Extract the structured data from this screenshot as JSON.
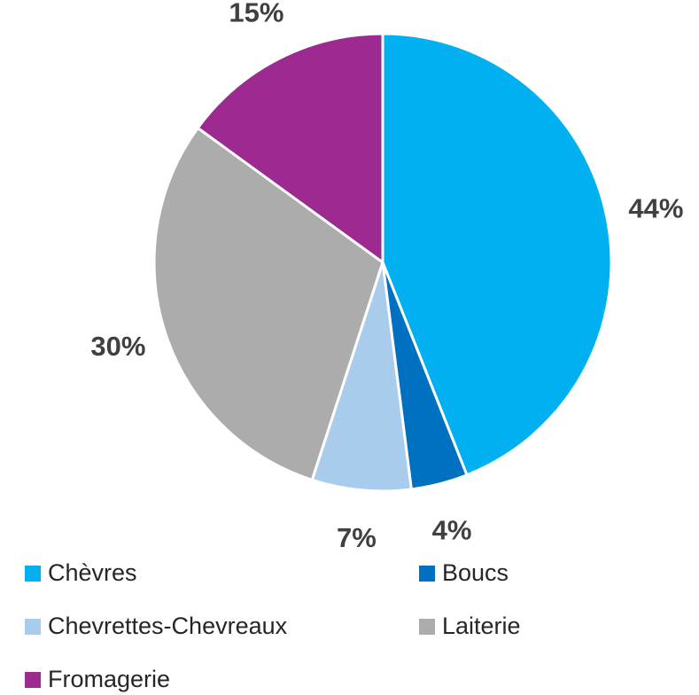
{
  "chart_data": {
    "type": "pie",
    "categories": [
      "Chèvres",
      "Boucs",
      "Chevrettes-Chevreaux",
      "Laiterie",
      "Fromagerie"
    ],
    "values": [
      44,
      4,
      7,
      30,
      15
    ],
    "value_labels": [
      "44%",
      "4%",
      "7%",
      "30%",
      "15%"
    ],
    "colors": [
      "#00b0f0",
      "#0070c0",
      "#a9cbec",
      "#acacac",
      "#9c2a90"
    ],
    "legend": "bottom"
  }
}
